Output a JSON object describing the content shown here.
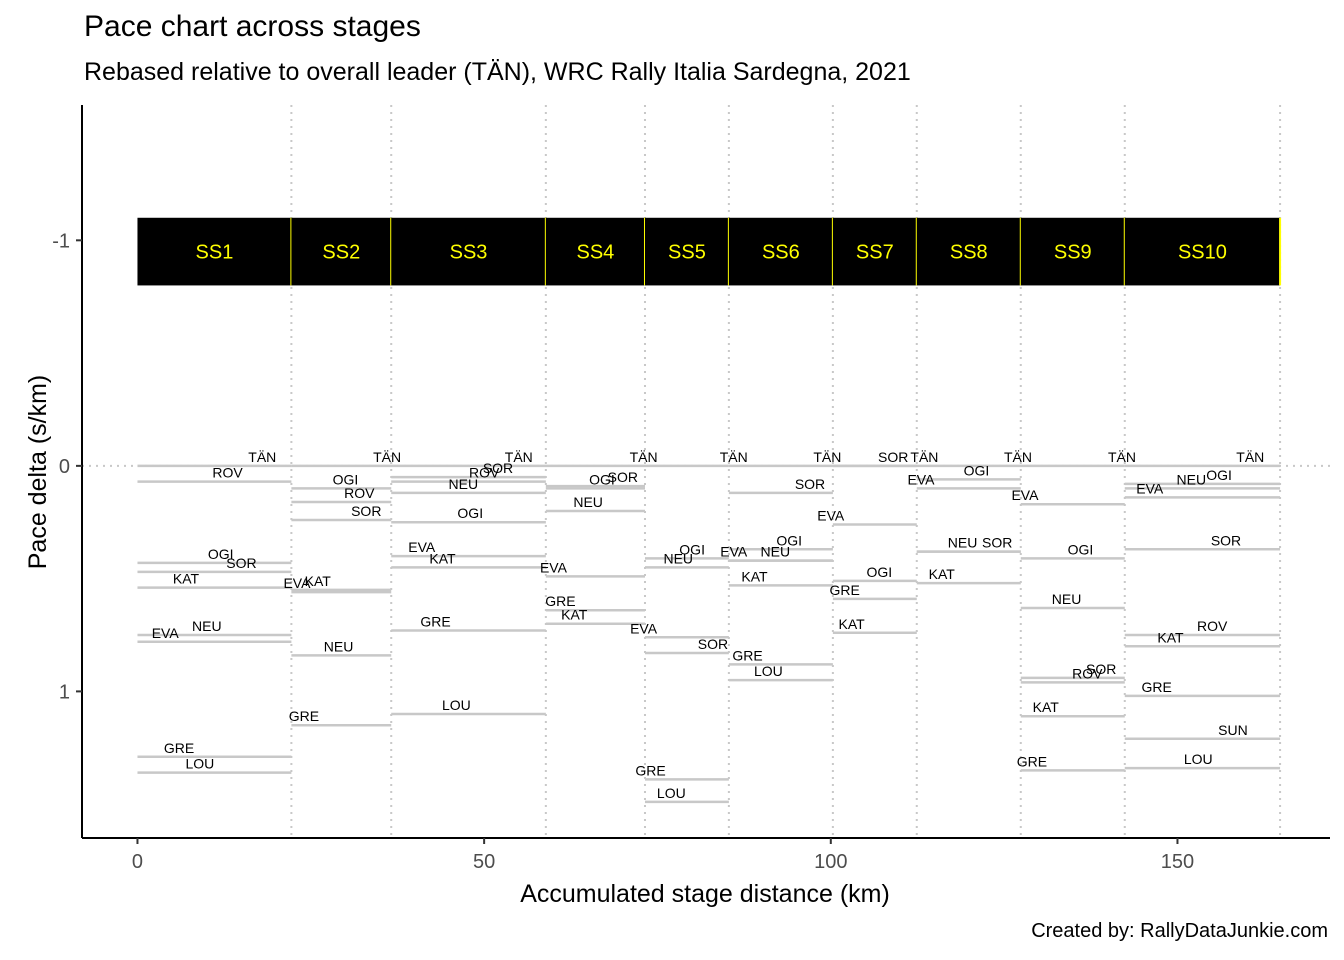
{
  "title": "Pace chart across stages",
  "subtitle": "Rebased relative to overall leader (TÄN), WRC Rally Italia Sardegna, 2021",
  "caption": "Created by: RallyDataJunkie.com",
  "chart_data": {
    "type": "line",
    "xlabel": "Accumulated stage distance (km)",
    "ylabel": "Pace delta (s/km)",
    "xlim": [
      -8,
      172
    ],
    "ylim": [
      1.65,
      -1.6
    ],
    "y_reversed": true,
    "xticks": [
      0,
      50,
      100,
      150
    ],
    "yticks": [
      -1,
      0,
      1
    ],
    "colors": {
      "segment": "#c8c8c8",
      "bar": "#000000",
      "stage_label": "#ffff00",
      "stage_divider": "#ffff00",
      "gridline": "#c8c8c8"
    },
    "stage_bar": {
      "y_top": -1.1,
      "y_bottom": -0.8
    },
    "stages": [
      {
        "name": "SS1",
        "start": 0,
        "end": 22.2
      },
      {
        "name": "SS2",
        "start": 22.2,
        "end": 36.6
      },
      {
        "name": "SS3",
        "start": 36.6,
        "end": 58.9
      },
      {
        "name": "SS4",
        "start": 58.9,
        "end": 73.2
      },
      {
        "name": "SS5",
        "start": 73.2,
        "end": 85.3
      },
      {
        "name": "SS6",
        "start": 85.3,
        "end": 100.3
      },
      {
        "name": "SS7",
        "start": 100.3,
        "end": 112.4
      },
      {
        "name": "SS8",
        "start": 112.4,
        "end": 127.4
      },
      {
        "name": "SS9",
        "start": 127.4,
        "end": 142.4
      },
      {
        "name": "SS10",
        "start": 142.4,
        "end": 164.8
      }
    ],
    "series": [
      {
        "name": "TÄN",
        "values": [
          0,
          0,
          0,
          0,
          0,
          0,
          0,
          0,
          0,
          0
        ],
        "label_x": [
          18,
          36,
          55,
          73,
          86,
          99.5,
          113.5,
          127,
          142,
          160.5
        ]
      },
      {
        "name": "ROV",
        "values": [
          0.07,
          0.16,
          0.07,
          null,
          null,
          null,
          null,
          null,
          0.96,
          0.75
        ],
        "label_x": [
          13,
          32,
          50,
          null,
          null,
          null,
          null,
          null,
          137,
          155
        ]
      },
      {
        "name": "OGI",
        "values": [
          0.43,
          0.1,
          0.25,
          0.1,
          0.41,
          0.37,
          0.51,
          0.06,
          0.41,
          0.08
        ],
        "label_x": [
          12,
          30,
          48,
          67,
          80,
          94,
          107,
          121,
          136,
          156
        ]
      },
      {
        "name": "SOR",
        "values": [
          0.47,
          0.24,
          0.05,
          0.09,
          0.83,
          0.12,
          0.0,
          0.38,
          0.94,
          0.37
        ],
        "label_x": [
          15,
          33,
          52,
          70,
          83,
          97,
          109,
          124,
          139,
          157
        ]
      },
      {
        "name": "KAT",
        "values": [
          0.54,
          0.55,
          0.45,
          0.7,
          null,
          0.53,
          0.74,
          0.52,
          1.11,
          0.8
        ],
        "label_x": [
          7,
          26,
          44,
          63,
          null,
          89,
          103,
          116,
          131,
          149
        ]
      },
      {
        "name": "EVA",
        "values": [
          0.78,
          0.56,
          0.4,
          0.49,
          0.76,
          0.42,
          0.26,
          0.1,
          0.17,
          0.14
        ],
        "label_x": [
          4,
          23,
          41,
          60,
          73,
          86,
          100,
          113,
          128,
          146
        ]
      },
      {
        "name": "NEU",
        "values": [
          0.75,
          0.84,
          0.12,
          0.2,
          0.45,
          0.42,
          null,
          0.38,
          0.63,
          0.1
        ],
        "label_x": [
          10,
          29,
          47,
          65,
          78,
          92,
          null,
          119,
          134,
          152
        ]
      },
      {
        "name": "GRE",
        "values": [
          1.29,
          1.15,
          0.73,
          0.64,
          1.39,
          0.88,
          0.59,
          null,
          1.35,
          1.02
        ],
        "label_x": [
          6,
          24,
          43,
          61,
          74,
          88,
          102,
          null,
          129,
          147
        ]
      },
      {
        "name": "LOU",
        "values": [
          1.36,
          null,
          1.1,
          null,
          1.49,
          0.95,
          null,
          null,
          null,
          1.34
        ],
        "label_x": [
          9,
          null,
          46,
          null,
          77,
          91,
          null,
          null,
          null,
          153
        ]
      },
      {
        "name": "SUN",
        "values": [
          null,
          null,
          null,
          null,
          null,
          null,
          null,
          null,
          null,
          1.21
        ],
        "label_x": [
          null,
          null,
          null,
          null,
          null,
          null,
          null,
          null,
          null,
          158
        ]
      }
    ]
  }
}
